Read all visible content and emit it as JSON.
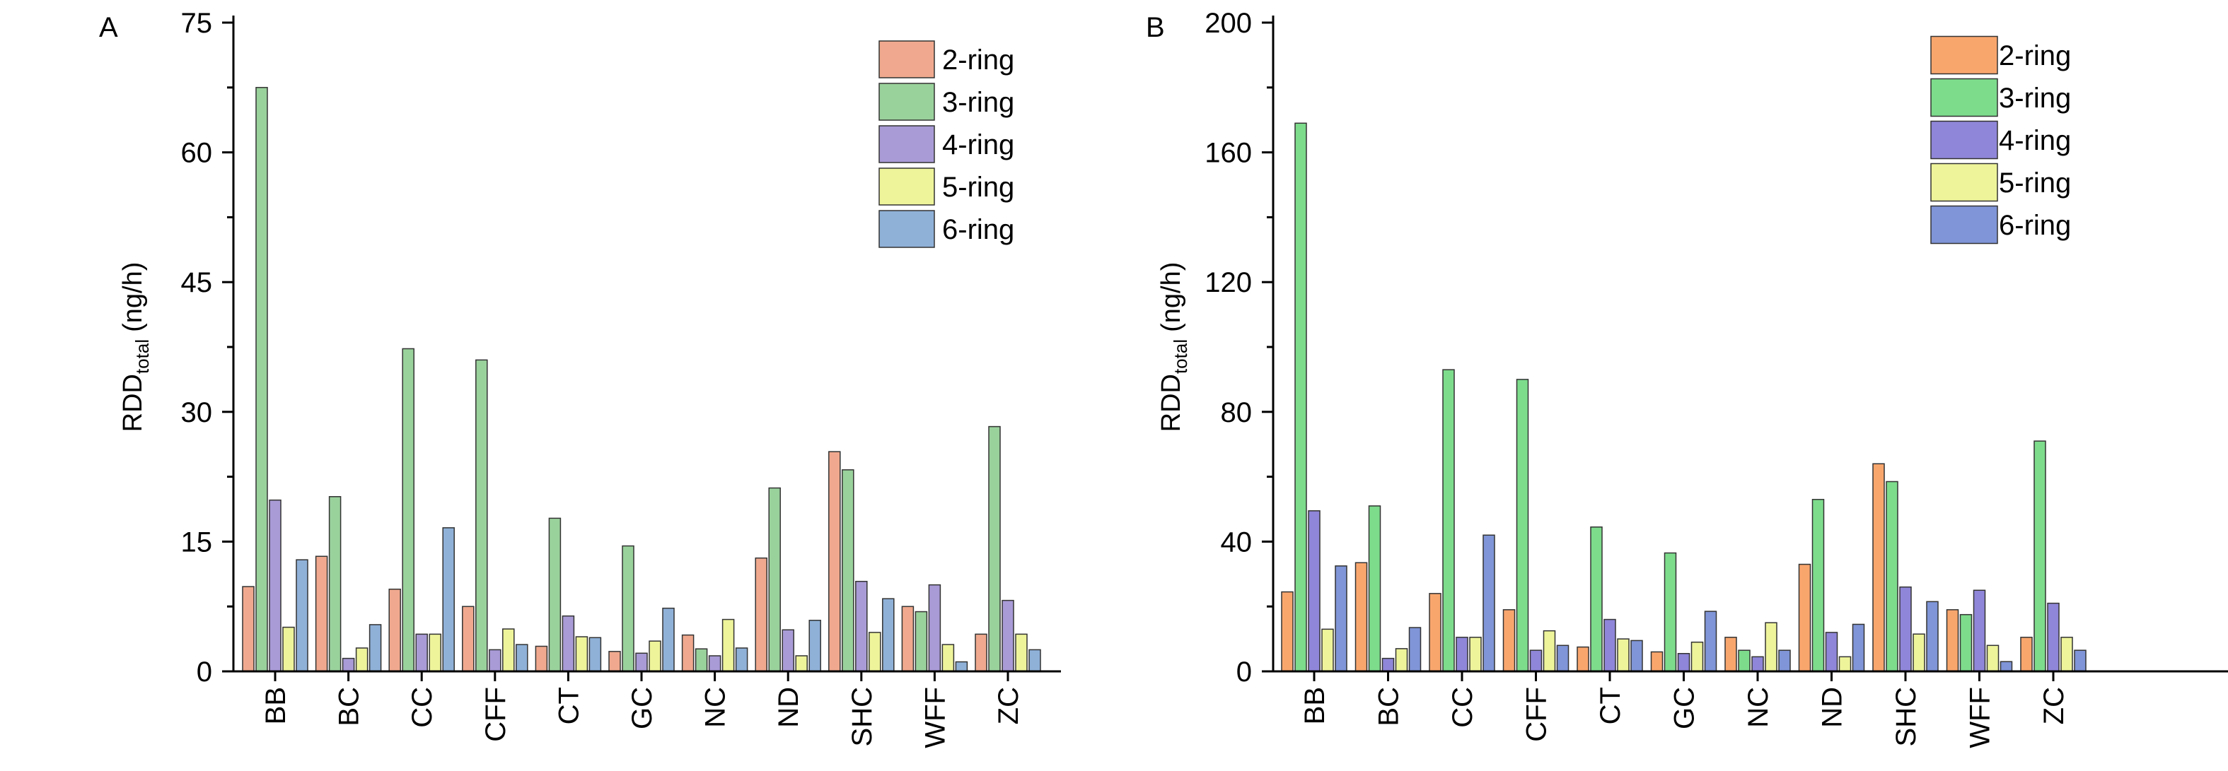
{
  "chart_data": [
    {
      "panel_label": "A",
      "type": "bar",
      "title": "",
      "xlabel": "",
      "ylabel_main": "RDD",
      "ylabel_sub": "total",
      "ylabel_unit": "(ng/h)",
      "ylim": [
        0,
        75
      ],
      "yticks": [
        0,
        15,
        30,
        45,
        60,
        75
      ],
      "ytick_labels": [
        "0",
        "15",
        "30",
        "45",
        "60",
        "75"
      ],
      "grid": false,
      "legend_position": "top-right",
      "categories": [
        "BB",
        "BC",
        "CC",
        "CFF",
        "CT",
        "GC",
        "NC",
        "ND",
        "SHC",
        "WFF",
        "ZC"
      ],
      "series": [
        {
          "name": "2-ring",
          "values": [
            9.8,
            13.3,
            9.5,
            7.5,
            2.9,
            2.3,
            4.2,
            13.1,
            25.4,
            7.5,
            4.3
          ]
        },
        {
          "name": "3-ring",
          "values": [
            67.5,
            20.2,
            37.3,
            36.0,
            17.7,
            14.5,
            2.6,
            21.2,
            23.3,
            6.9,
            28.3
          ]
        },
        {
          "name": "4-ring",
          "values": [
            19.8,
            1.5,
            4.3,
            2.5,
            6.4,
            2.1,
            1.8,
            4.8,
            10.4,
            10.0,
            8.2
          ]
        },
        {
          "name": "5-ring",
          "values": [
            5.1,
            2.7,
            4.3,
            4.9,
            4.0,
            3.5,
            6.0,
            1.8,
            4.5,
            3.1,
            4.3
          ]
        },
        {
          "name": "6-ring",
          "values": [
            12.9,
            5.4,
            16.6,
            3.1,
            3.9,
            7.3,
            2.7,
            5.9,
            8.4,
            1.1,
            2.5
          ]
        }
      ]
    },
    {
      "panel_label": "B",
      "type": "bar",
      "title": "",
      "xlabel": "",
      "ylabel_main": "RDD",
      "ylabel_sub": "total",
      "ylabel_unit": "(ng/h)",
      "ylim": [
        0,
        200
      ],
      "yticks": [
        0,
        40,
        80,
        120,
        160,
        200
      ],
      "ytick_labels": [
        "0",
        "40",
        "80",
        "120",
        "160",
        "200"
      ],
      "grid": false,
      "legend_position": "top-right",
      "categories": [
        "BB",
        "BC",
        "CC",
        "CFF",
        "CT",
        "GC",
        "NC",
        "ND",
        "SHC",
        "WFF",
        "ZC"
      ],
      "series": [
        {
          "name": "2-ring",
          "values": [
            24.5,
            33.5,
            24.0,
            19.0,
            7.5,
            6.0,
            10.5,
            33.0,
            64.0,
            19.0,
            10.5
          ]
        },
        {
          "name": "3-ring",
          "values": [
            169,
            51.0,
            93.0,
            90.0,
            44.5,
            36.5,
            6.5,
            53.0,
            58.5,
            17.5,
            71.0
          ]
        },
        {
          "name": "4-ring",
          "values": [
            49.5,
            4.0,
            10.5,
            6.5,
            16.0,
            5.5,
            4.5,
            12.0,
            26.0,
            25.0,
            21.0
          ]
        },
        {
          "name": "5-ring",
          "values": [
            13.0,
            7.0,
            10.5,
            12.5,
            10.0,
            9.0,
            15.0,
            4.5,
            11.5,
            8.0,
            10.5
          ]
        },
        {
          "name": "6-ring",
          "values": [
            32.5,
            13.5,
            42.0,
            8.0,
            9.5,
            18.5,
            6.5,
            14.5,
            21.5,
            3.0,
            6.5
          ]
        }
      ]
    }
  ],
  "series_colors": {
    "2-ring": [
      "#f0a98e",
      "#f9a66d"
    ],
    "3-ring": [
      "#9ad29c",
      "#7ddc8c"
    ],
    "4-ring": [
      "#a99bd6",
      "#8f86d9"
    ],
    "5-ring": [
      "#eef49a",
      "#eef49a"
    ],
    "6-ring": [
      "#8fb1d8",
      "#7f95d7"
    ]
  }
}
